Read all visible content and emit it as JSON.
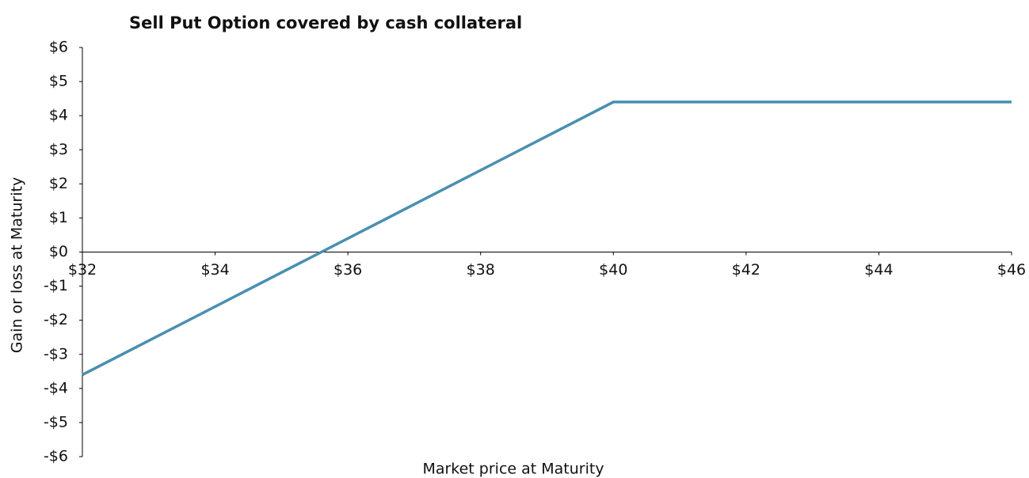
{
  "chart_data": {
    "type": "line",
    "title": "Sell Put Option covered by cash collateral",
    "x_label": "Market price at Maturity",
    "y_label": "Gain or loss at Maturity",
    "x": [
      32,
      40,
      46
    ],
    "series": [
      {
        "name": null,
        "color": "#4a8fb0",
        "values": [
          -3.6,
          4.4,
          4.4
        ]
      }
    ],
    "xlim": [
      32,
      46
    ],
    "xticks": [
      {
        "value": 32,
        "label": "$32"
      },
      {
        "value": 34,
        "label": "$34"
      },
      {
        "value": 36,
        "label": "$36"
      },
      {
        "value": 38,
        "label": "$38"
      },
      {
        "value": 40,
        "label": "$40"
      },
      {
        "value": 42,
        "label": "$42"
      },
      {
        "value": 44,
        "label": "$44"
      },
      {
        "value": 46,
        "label": "$46"
      }
    ],
    "ylim": [
      -6,
      6
    ],
    "yticks": [
      {
        "value": 6,
        "label": "$6"
      },
      {
        "value": 5,
        "label": "$5"
      },
      {
        "value": 4,
        "label": "$4"
      },
      {
        "value": 3,
        "label": "$3"
      },
      {
        "value": 2,
        "label": "$2"
      },
      {
        "value": 1,
        "label": "$1"
      },
      {
        "value": 0,
        "label": "$0"
      },
      {
        "value": -1,
        "label": "-$1"
      },
      {
        "value": -2,
        "label": "-$2"
      },
      {
        "value": -3,
        "label": "-$3"
      },
      {
        "value": -4,
        "label": "-$4"
      },
      {
        "value": -5,
        "label": "-$5"
      },
      {
        "value": -6,
        "label": "-$6"
      }
    ],
    "grid": false
  }
}
